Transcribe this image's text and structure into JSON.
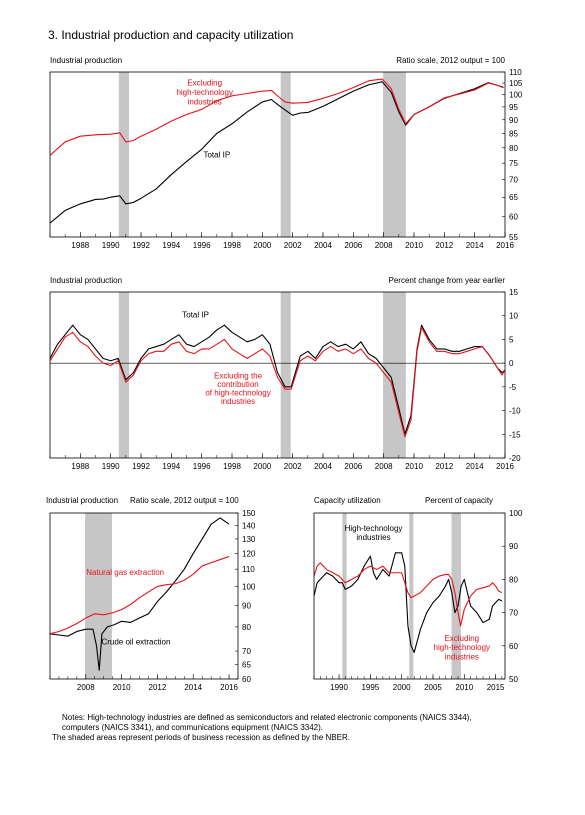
{
  "page_title": "3. Industrial production and capacity utilization",
  "notes": [
    "Notes:  High-technology industries are defined as semiconductors and related electronic components (NAICS 3344),",
    "computers (NAICS 3341), and communications equipment (NAICS 3342).",
    "The shaded areas represent periods of business recession as defined by the NBER."
  ],
  "colors": {
    "black_series": "#000000",
    "red_series": "#e8121b",
    "recession": "#c6c6c6"
  },
  "recessions": [
    [
      1990.54,
      1991.21
    ],
    [
      2001.21,
      2001.87
    ],
    [
      2007.96,
      2009.46
    ]
  ],
  "chart_data": [
    {
      "id": "chart1",
      "type": "line",
      "title": "Industrial production",
      "scale_note": "Ratio scale, 2012 output = 100",
      "log_scale": true,
      "xlim": [
        1986.0,
        2016.0
      ],
      "ylim": [
        55,
        110
      ],
      "x_ticks": [
        1988,
        1990,
        1992,
        1994,
        1996,
        1998,
        2000,
        2002,
        2004,
        2006,
        2008,
        2010,
        2012,
        2014,
        2016
      ],
      "y_ticks": [
        55,
        60,
        65,
        70,
        75,
        80,
        85,
        90,
        95,
        100,
        105,
        110
      ],
      "series": [
        {
          "name": "Total IP",
          "color": "#000000",
          "x": [
            1986.0,
            1987.0,
            1988.0,
            1989.0,
            1989.5,
            1990.0,
            1990.6,
            1991.0,
            1991.5,
            1992.0,
            1993.0,
            1994.0,
            1995.0,
            1996.0,
            1997.0,
            1998.0,
            1999.0,
            2000.0,
            2000.6,
            2001.0,
            2001.5,
            2002.0,
            2002.5,
            2003.0,
            2004.0,
            2005.0,
            2006.0,
            2007.0,
            2007.9,
            2008.5,
            2009.0,
            2009.45,
            2010.0,
            2011.0,
            2012.0,
            2013.0,
            2014.0,
            2014.9,
            2015.5,
            2015.9
          ],
          "y": [
            58.3,
            61.5,
            63.2,
            64.4,
            64.5,
            65.0,
            65.4,
            63.2,
            63.6,
            64.7,
            67.3,
            71.5,
            75.5,
            79.5,
            85.0,
            88.5,
            93.0,
            97.0,
            98.0,
            96.0,
            93.8,
            91.7,
            92.6,
            92.8,
            95.2,
            98.3,
            101.5,
            104.2,
            105.6,
            101.0,
            93.0,
            88.0,
            92.0,
            95.0,
            98.5,
            100.5,
            102.5,
            105.2,
            104.0,
            103.0
          ]
        },
        {
          "name": "Excluding high-technology industries",
          "color": "#e8121b",
          "x": [
            1986.0,
            1987.0,
            1988.0,
            1989.0,
            1990.0,
            1990.6,
            1991.0,
            1991.5,
            1992.0,
            1993.0,
            1994.0,
            1995.0,
            1996.0,
            1997.0,
            1998.0,
            1999.0,
            2000.0,
            2000.6,
            2001.0,
            2001.5,
            2002.0,
            2003.0,
            2004.0,
            2005.0,
            2006.0,
            2007.0,
            2007.9,
            2008.5,
            2009.0,
            2009.45,
            2010.0,
            2011.0,
            2012.0,
            2013.0,
            2014.0,
            2014.9,
            2015.5,
            2015.9
          ],
          "y": [
            77.5,
            82.0,
            84.0,
            84.5,
            84.7,
            85.2,
            82.0,
            82.5,
            84.0,
            86.5,
            89.5,
            92.0,
            94.0,
            97.5,
            99.5,
            100.5,
            101.5,
            101.8,
            99.5,
            97.0,
            96.5,
            96.8,
            98.5,
            100.5,
            103.0,
            106.0,
            106.8,
            102.5,
            94.0,
            88.5,
            92.0,
            95.0,
            98.7,
            100.3,
            102.0,
            105.0,
            104.0,
            103.2
          ]
        }
      ],
      "annotations": [
        {
          "text": "Excluding",
          "x": 1996.2,
          "y": 104.0,
          "color": "#e8121b"
        },
        {
          "text": "high-technology",
          "x": 1996.2,
          "y": 99.8,
          "color": "#e8121b"
        },
        {
          "text": "industries",
          "x": 1996.2,
          "y": 96.0,
          "color": "#e8121b"
        },
        {
          "text": "Total IP",
          "x": 1997.0,
          "y": 76.8,
          "color": "#000000"
        }
      ]
    },
    {
      "id": "chart2",
      "type": "line",
      "title": "Industrial production",
      "scale_note": "Percent change from year earlier",
      "log_scale": false,
      "xlim": [
        1986.0,
        2016.0
      ],
      "ylim": [
        -20,
        15
      ],
      "x_ticks": [
        1988,
        1990,
        1992,
        1994,
        1996,
        1998,
        2000,
        2002,
        2004,
        2006,
        2008,
        2010,
        2012,
        2014,
        2016
      ],
      "y_ticks": [
        -20,
        -15,
        -10,
        -5,
        0,
        5,
        10,
        15
      ],
      "series": [
        {
          "name": "Total IP",
          "color": "#000000",
          "x": [
            1986.0,
            1986.5,
            1987.0,
            1987.5,
            1988.0,
            1988.5,
            1989.0,
            1989.5,
            1990.0,
            1990.5,
            1991.0,
            1991.5,
            1992.0,
            1992.5,
            1993.0,
            1993.5,
            1994.0,
            1994.5,
            1995.0,
            1995.5,
            1996.0,
            1996.5,
            1997.0,
            1997.5,
            1998.0,
            1998.5,
            1999.0,
            1999.5,
            2000.0,
            2000.5,
            2001.0,
            2001.5,
            2001.9,
            2002.5,
            2003.0,
            2003.5,
            2004.0,
            2004.5,
            2005.0,
            2005.5,
            2006.0,
            2006.5,
            2007.0,
            2007.5,
            2008.0,
            2008.5,
            2009.0,
            2009.4,
            2009.8,
            2010.2,
            2010.5,
            2011.0,
            2011.5,
            2012.0,
            2012.5,
            2013.0,
            2013.5,
            2014.0,
            2014.5,
            2015.0,
            2015.5,
            2015.8,
            2016.0
          ],
          "y": [
            1.0,
            4.0,
            6.0,
            8.0,
            6.0,
            5.0,
            3.0,
            1.0,
            0.5,
            1.0,
            -3.5,
            -2.0,
            1.0,
            3.0,
            3.5,
            4.0,
            5.0,
            6.0,
            4.0,
            3.5,
            4.5,
            5.5,
            7.0,
            8.0,
            6.5,
            5.5,
            4.5,
            5.0,
            6.0,
            4.0,
            -2.0,
            -5.0,
            -5.0,
            1.5,
            2.5,
            1.0,
            3.5,
            4.5,
            3.5,
            4.0,
            3.0,
            4.5,
            2.0,
            1.0,
            -1.0,
            -3.0,
            -9.5,
            -15.0,
            -11.0,
            3.0,
            8.0,
            5.0,
            3.0,
            3.0,
            2.5,
            2.5,
            3.0,
            3.5,
            3.5,
            1.5,
            -1.0,
            -2.0,
            -1.5
          ]
        },
        {
          "name": "Excluding the contribution of high-technology industries",
          "color": "#e8121b",
          "x": [
            1986.0,
            1986.5,
            1987.0,
            1987.5,
            1988.0,
            1988.5,
            1989.0,
            1989.5,
            1990.0,
            1990.5,
            1991.0,
            1991.5,
            1992.0,
            1992.5,
            1993.0,
            1993.5,
            1994.0,
            1994.5,
            1995.0,
            1995.5,
            1996.0,
            1996.5,
            1997.0,
            1997.5,
            1998.0,
            1998.5,
            1999.0,
            1999.5,
            2000.0,
            2000.5,
            2001.0,
            2001.5,
            2001.9,
            2002.5,
            2003.0,
            2003.5,
            2004.0,
            2004.5,
            2005.0,
            2005.5,
            2006.0,
            2006.5,
            2007.0,
            2007.5,
            2008.0,
            2008.5,
            2009.0,
            2009.4,
            2009.8,
            2010.2,
            2010.5,
            2011.0,
            2011.5,
            2012.0,
            2012.5,
            2013.0,
            2013.5,
            2014.0,
            2014.5,
            2015.0,
            2015.5,
            2015.8,
            2016.0
          ],
          "y": [
            0.5,
            3.0,
            5.5,
            6.5,
            4.5,
            3.5,
            1.5,
            0.0,
            -0.5,
            0.5,
            -4.0,
            -2.5,
            0.5,
            2.0,
            2.5,
            2.5,
            4.0,
            4.5,
            2.5,
            2.0,
            3.0,
            3.0,
            4.0,
            5.0,
            3.0,
            2.0,
            1.0,
            2.0,
            3.0,
            1.5,
            -3.0,
            -5.5,
            -5.5,
            0.5,
            1.5,
            0.5,
            2.5,
            3.5,
            2.5,
            3.0,
            2.0,
            3.0,
            1.0,
            0.0,
            -2.0,
            -4.0,
            -10.5,
            -15.5,
            -12.0,
            2.5,
            7.5,
            4.5,
            2.5,
            2.5,
            2.0,
            2.0,
            2.5,
            3.0,
            3.5,
            1.5,
            -1.0,
            -2.5,
            -1.5
          ]
        }
      ],
      "annotations": [
        {
          "text": "Total IP",
          "x": 1995.6,
          "y": 9.6,
          "color": "#000000"
        },
        {
          "text": "Excluding the",
          "x": 1998.4,
          "y": -3.2,
          "color": "#e8121b"
        },
        {
          "text": "contribution",
          "x": 1998.4,
          "y": -5.0,
          "color": "#e8121b"
        },
        {
          "text": "of high-technology",
          "x": 1998.4,
          "y": -6.8,
          "color": "#e8121b"
        },
        {
          "text": "industries",
          "x": 1998.4,
          "y": -8.6,
          "color": "#e8121b"
        }
      ]
    },
    {
      "id": "chart3",
      "type": "line",
      "title": "Industrial production",
      "scale_note": "Ratio scale, 2012 output = 100",
      "log_scale": true,
      "xlim": [
        2006.0,
        2016.5
      ],
      "ylim": [
        60,
        150
      ],
      "x_ticks": [
        2008,
        2010,
        2012,
        2014,
        2016
      ],
      "y_ticks": [
        60,
        65,
        70,
        80,
        90,
        100,
        110,
        120,
        130,
        140,
        150
      ],
      "series": [
        {
          "name": "Crude oil extraction",
          "color": "#000000",
          "x": [
            2006.0,
            2006.5,
            2007.0,
            2007.5,
            2008.0,
            2008.4,
            2008.6,
            2008.75,
            2008.9,
            2009.2,
            2009.6,
            2010.0,
            2010.5,
            2011.0,
            2011.5,
            2012.0,
            2012.5,
            2013.0,
            2013.5,
            2014.0,
            2014.5,
            2015.0,
            2015.5,
            2016.0
          ],
          "y": [
            77.0,
            76.5,
            76.0,
            78.0,
            79.0,
            79.0,
            72.0,
            63.0,
            77.0,
            80.0,
            81.0,
            82.5,
            82.0,
            84.0,
            86.0,
            92.0,
            97.0,
            103.0,
            110.0,
            120.0,
            130.0,
            141.0,
            146.0,
            141.0
          ]
        },
        {
          "name": "Natural gas extraction",
          "color": "#e8121b",
          "x": [
            2006.0,
            2006.5,
            2007.0,
            2007.5,
            2008.0,
            2008.5,
            2009.0,
            2009.5,
            2010.0,
            2010.5,
            2011.0,
            2011.5,
            2012.0,
            2012.5,
            2013.0,
            2013.5,
            2014.0,
            2014.5,
            2015.0,
            2015.5,
            2016.0
          ],
          "y": [
            77.0,
            78.0,
            79.5,
            81.5,
            84.0,
            86.0,
            85.5,
            86.5,
            88.0,
            90.5,
            94.0,
            97.0,
            100.0,
            101.0,
            101.5,
            103.5,
            107.0,
            112.0,
            114.0,
            116.0,
            118.0
          ]
        }
      ],
      "annotations": [
        {
          "text": "Natural gas extraction",
          "x": 2010.2,
          "y": 106.5,
          "color": "#e8121b"
        },
        {
          "text": "Crude oil extraction",
          "x": 2010.8,
          "y": 72.5,
          "color": "#000000"
        }
      ]
    },
    {
      "id": "chart4",
      "type": "line",
      "title": "Capacity utilization",
      "scale_note": "Percent of capacity",
      "log_scale": false,
      "xlim": [
        1986.0,
        2016.5
      ],
      "ylim": [
        50,
        100
      ],
      "x_ticks": [
        1990,
        1995,
        2000,
        2005,
        2010,
        2015
      ],
      "y_ticks": [
        50,
        60,
        70,
        80,
        90,
        100
      ],
      "series": [
        {
          "name": "High-technology industries",
          "color": "#000000",
          "x": [
            1986.0,
            1986.5,
            1987.0,
            1988.0,
            1989.0,
            1990.0,
            1990.5,
            1991.0,
            1992.0,
            1993.0,
            1994.0,
            1995.0,
            1995.5,
            1996.0,
            1997.0,
            1998.0,
            1999.0,
            2000.0,
            2000.5,
            2001.0,
            2001.5,
            2002.0,
            2003.0,
            2004.0,
            2005.0,
            2006.0,
            2007.0,
            2007.5,
            2008.0,
            2008.5,
            2009.0,
            2009.5,
            2010.0,
            2010.5,
            2011.0,
            2012.0,
            2013.0,
            2014.0,
            2014.5,
            2015.0,
            2015.5,
            2016.0
          ],
          "y": [
            75.0,
            79.0,
            80.0,
            82.0,
            81.0,
            79.0,
            79.0,
            77.0,
            78.0,
            80.0,
            84.0,
            87.0,
            82.0,
            80.0,
            83.0,
            81.0,
            88.0,
            88.0,
            84.0,
            66.0,
            60.0,
            58.0,
            65.0,
            70.0,
            73.0,
            75.0,
            78.0,
            80.0,
            76.0,
            70.0,
            72.0,
            78.0,
            80.0,
            76.0,
            72.0,
            70.0,
            67.0,
            68.0,
            72.0,
            73.0,
            74.0,
            73.5
          ]
        },
        {
          "name": "Excluding high-technology industries",
          "color": "#e8121b",
          "x": [
            1986.0,
            1986.5,
            1987.0,
            1988.0,
            1989.0,
            1990.0,
            1991.0,
            1992.0,
            1993.0,
            1994.0,
            1995.0,
            1996.0,
            1997.0,
            1998.0,
            1999.0,
            2000.0,
            2001.0,
            2001.5,
            2002.0,
            2003.0,
            2004.0,
            2005.0,
            2006.0,
            2007.0,
            2007.5,
            2008.0,
            2008.5,
            2009.0,
            2009.4,
            2010.0,
            2011.0,
            2012.0,
            2013.0,
            2014.0,
            2014.5,
            2015.0,
            2015.5,
            2016.0
          ],
          "y": [
            81.0,
            84.0,
            85.0,
            83.0,
            82.0,
            81.0,
            79.0,
            80.0,
            81.0,
            83.0,
            84.0,
            83.0,
            84.0,
            82.0,
            82.0,
            82.0,
            76.0,
            74.5,
            75.0,
            76.0,
            78.0,
            80.0,
            81.0,
            81.5,
            81.5,
            80.0,
            76.0,
            70.0,
            66.0,
            71.0,
            75.0,
            77.0,
            77.5,
            78.0,
            79.0,
            78.0,
            76.5,
            76.0
          ]
        }
      ],
      "annotations": [
        {
          "text": "High-technology",
          "x": 1995.5,
          "y": 94.6,
          "color": "#000000"
        },
        {
          "text": "industries",
          "x": 1995.5,
          "y": 91.8,
          "color": "#000000"
        },
        {
          "text": "Excluding",
          "x": 2009.6,
          "y": 61.5,
          "color": "#e8121b"
        },
        {
          "text": "high-technology",
          "x": 2009.6,
          "y": 58.7,
          "color": "#e8121b"
        },
        {
          "text": "industries",
          "x": 2009.6,
          "y": 55.9,
          "color": "#e8121b"
        }
      ]
    }
  ]
}
